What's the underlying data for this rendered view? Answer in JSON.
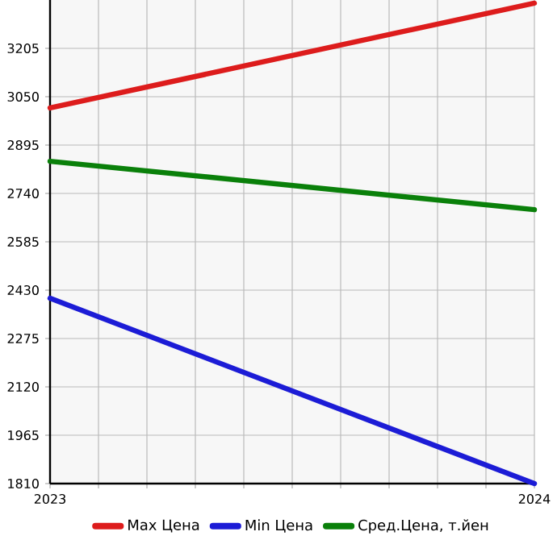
{
  "chart_data": {
    "type": "line",
    "x": [
      2023,
      2024
    ],
    "series": [
      {
        "name": "Max Цена",
        "color": "#dd1c1c",
        "values": [
          3014,
          3350
        ]
      },
      {
        "name": "Min Цена",
        "color": "#1c1cd6",
        "values": [
          2404,
          1810
        ]
      },
      {
        "name": "Сред.Цена, т.йен",
        "color": "#0a800a",
        "values": [
          2843,
          2688
        ]
      }
    ],
    "xlim": [
      2023,
      2024
    ],
    "xticks": [
      2023,
      {
        "value": 2023.1,
        "label": null
      },
      {
        "value": 2023.2,
        "label": null
      },
      {
        "value": 2023.3,
        "label": null
      },
      {
        "value": 2023.4,
        "label": null
      },
      {
        "value": 2023.5,
        "label": null
      },
      {
        "value": 2023.6,
        "label": null
      },
      {
        "value": 2023.7,
        "label": null
      },
      {
        "value": 2023.8,
        "label": null
      },
      {
        "value": 2023.9,
        "label": null
      },
      2024
    ],
    "ylim": [
      1810,
      3360
    ],
    "yticks": [
      1810,
      1965,
      2120,
      2275,
      2430,
      2585,
      2740,
      2895,
      3050,
      3205
    ],
    "grid": true,
    "legend": "bottom"
  }
}
